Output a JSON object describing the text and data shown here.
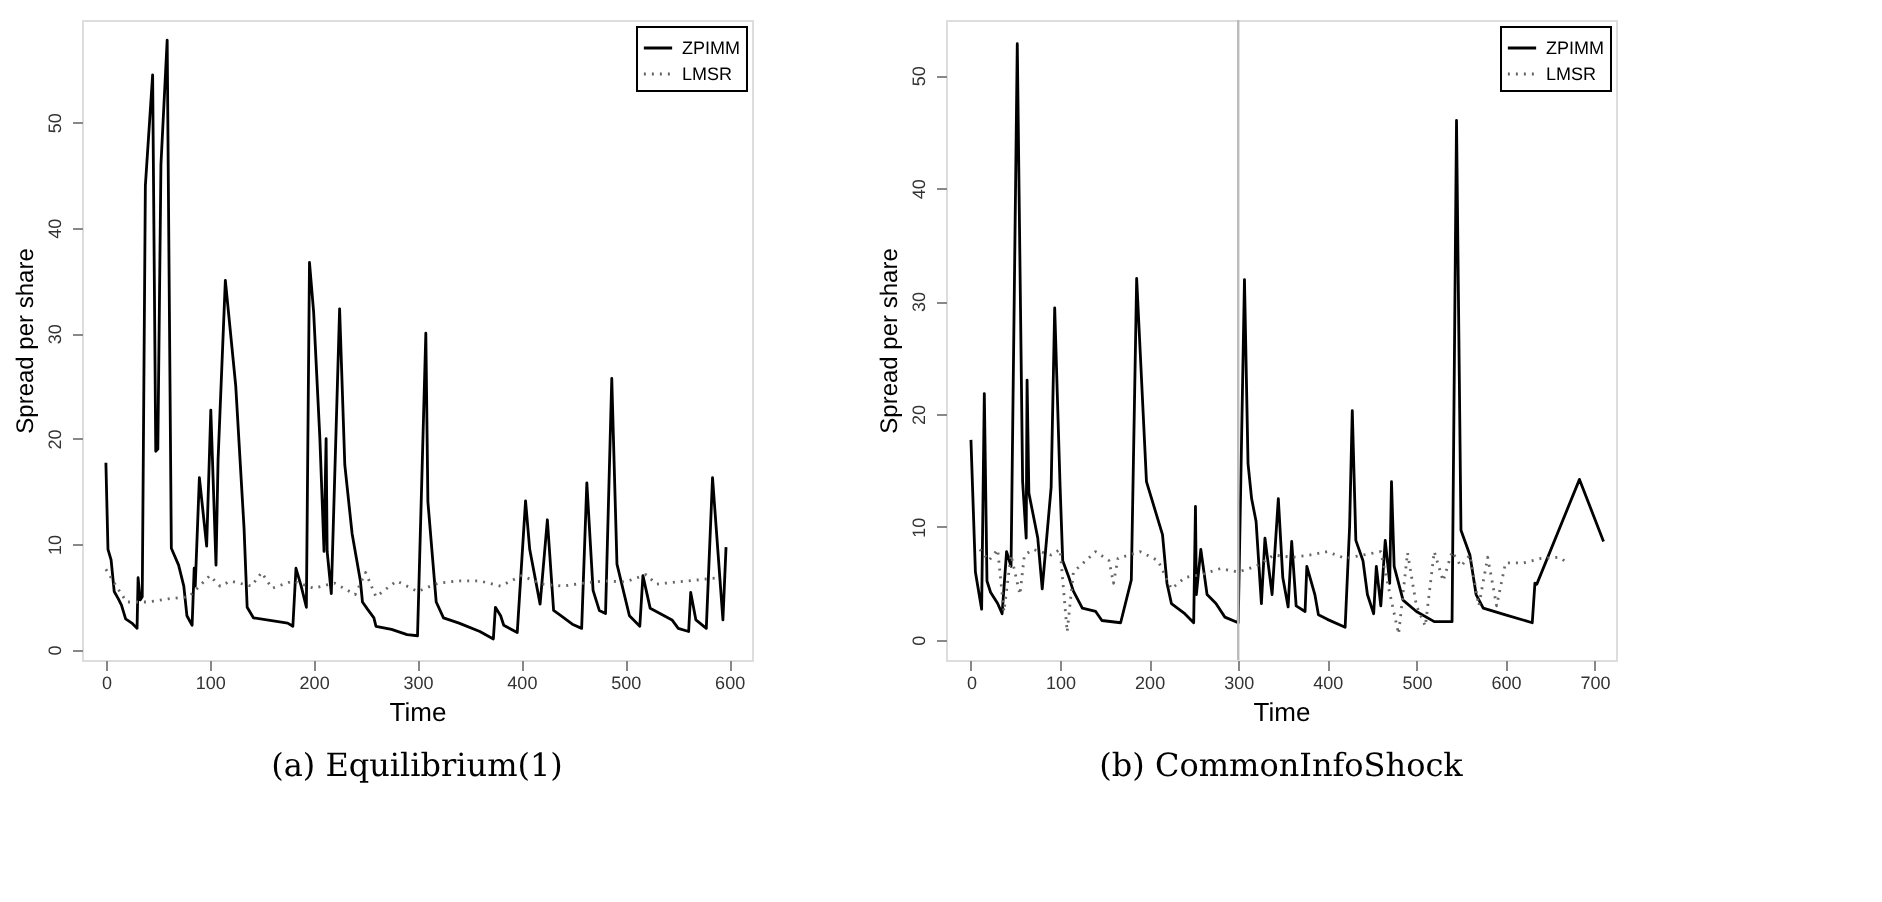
{
  "chart_data": [
    {
      "type": "line",
      "title": "(a) Equilibrium(1)",
      "xlabel": "Time",
      "ylabel": "Spread per share",
      "xlim": [
        -23,
        622
      ],
      "ylim": [
        -1,
        59.7
      ],
      "xticks": [
        0,
        100,
        200,
        300,
        400,
        500,
        600
      ],
      "yticks": [
        0,
        10,
        20,
        30,
        40,
        50
      ],
      "grid": false,
      "legend": "top right",
      "marker": "none",
      "series": [
        {
          "name": "ZPIMM",
          "color": "#000000",
          "line_style": "solid",
          "x": [
            0,
            2,
            5,
            8,
            12,
            15,
            19,
            25,
            30,
            31,
            33,
            35,
            38,
            45,
            48,
            50,
            53,
            59,
            63,
            70,
            75,
            78,
            83,
            85,
            86,
            90,
            97,
            101,
            106,
            108,
            115,
            125,
            133,
            136,
            142,
            175,
            180,
            183,
            188,
            193,
            196,
            200,
            206,
            210,
            212,
            213,
            217,
            225,
            230,
            237,
            245,
            247,
            252,
            258,
            260,
            275,
            290,
            300,
            308,
            310,
            318,
            325,
            340,
            360,
            373,
            375,
            380,
            383,
            396,
            404,
            408,
            418,
            425,
            431,
            438,
            449,
            458,
            463,
            469,
            475,
            481,
            487,
            492,
            504,
            514,
            517,
            524,
            545,
            551,
            561,
            563,
            568,
            578,
            584,
            594,
            597
          ],
          "values": [
            17.7,
            9.5,
            8.5,
            5.5,
            4.8,
            4.2,
            2.9,
            2.5,
            2,
            6.8,
            4.7,
            5,
            44,
            54.5,
            18.8,
            19,
            46,
            57.8,
            9.6,
            8,
            6,
            3.2,
            2.3,
            7.7,
            6,
            16.3,
            9.8,
            22.7,
            8,
            18,
            35,
            25,
            11.5,
            4,
            3,
            2.5,
            2.2,
            7.7,
            6,
            4,
            36.7,
            32,
            20,
            9.3,
            20,
            9.3,
            5.3,
            32.3,
            17.5,
            11,
            6.5,
            4.5,
            3.8,
            3,
            2.2,
            1.9,
            1.4,
            1.3,
            30,
            14,
            4.5,
            3,
            2.5,
            1.7,
            1,
            4,
            3.2,
            2.3,
            1.6,
            14.1,
            9.5,
            4.3,
            12.3,
            3.7,
            3.2,
            2.4,
            2,
            15.8,
            5.6,
            3.7,
            3.4,
            25.7,
            8.1,
            3.2,
            2.2,
            7,
            3.9,
            2.8,
            2,
            1.7,
            5.4,
            2.8,
            2,
            16.3,
            2.8,
            9.7
          ]
        },
        {
          "name": "LMSR",
          "color": "#666666",
          "line_style": "dotted",
          "x": [
            0,
            10,
            20,
            40,
            60,
            80,
            100,
            110,
            120,
            140,
            150,
            160,
            180,
            200,
            220,
            240,
            250,
            260,
            280,
            300,
            320,
            340,
            360,
            380,
            400,
            420,
            440,
            460,
            480,
            500,
            520,
            530,
            560,
            590
          ],
          "values": [
            7.6,
            6,
            4.5,
            4.5,
            4.8,
            5,
            7,
            6,
            6.5,
            6,
            7.3,
            5.8,
            6.5,
            5.8,
            6.3,
            5.2,
            7.3,
            5,
            6.5,
            5.5,
            6.3,
            6.5,
            6.5,
            6,
            7,
            6.2,
            6,
            6.3,
            6.5,
            6.4,
            7.1,
            6.2,
            6.5,
            6.8
          ]
        }
      ]
    },
    {
      "type": "line",
      "title": "(b) CommonInfoShock",
      "xlabel": "Time",
      "ylabel": "Spread per share",
      "xlim": [
        -28,
        724
      ],
      "ylim": [
        -1.8,
        54.9
      ],
      "xticks": [
        0,
        100,
        200,
        300,
        400,
        500,
        600,
        700
      ],
      "yticks": [
        0,
        10,
        20,
        30,
        40,
        50
      ],
      "grid": false,
      "legend": "top right",
      "marker": "none",
      "ref_lines": [
        {
          "axis": "x",
          "value": 300,
          "color": "#bbbbbb"
        }
      ],
      "series": [
        {
          "name": "ZPIMM",
          "color": "#000000",
          "line_style": "solid",
          "x": [
            0,
            5,
            12,
            15,
            18,
            22,
            30,
            35,
            40,
            45,
            52,
            58,
            62,
            63,
            65,
            75,
            80,
            90,
            94,
            100,
            103,
            110,
            115,
            125,
            140,
            147,
            168,
            180,
            186,
            197,
            215,
            220,
            225,
            240,
            250,
            252,
            253,
            258,
            265,
            275,
            285,
            300,
            307,
            311,
            315,
            320,
            326,
            330,
            338,
            345,
            350,
            356,
            360,
            365,
            375,
            377,
            386,
            390,
            400,
            420,
            425,
            428,
            432,
            440,
            445,
            452,
            455,
            460,
            465,
            470,
            472,
            475,
            485,
            500,
            520,
            540,
            545,
            550,
            560,
            567,
            575,
            600,
            630,
            633,
            635,
            683,
            710
          ],
          "values": [
            17.7,
            6,
            2.7,
            21.8,
            5.2,
            4.2,
            3.2,
            2.3,
            7.8,
            6.5,
            52.8,
            14,
            9,
            23,
            13,
            9,
            4.5,
            13.5,
            29.4,
            13.7,
            7,
            5.5,
            4.3,
            2.8,
            2.5,
            1.7,
            1.5,
            5.3,
            32,
            14,
            9.3,
            5,
            3.2,
            2.3,
            1.5,
            11.8,
            4,
            8,
            4,
            3.2,
            2,
            1.5,
            31.9,
            15.6,
            12.5,
            10.5,
            3.2,
            9,
            4,
            12.5,
            5.5,
            2.9,
            8.7,
            3,
            2.5,
            6.5,
            4,
            2.2,
            1.8,
            1.1,
            10,
            20.3,
            8.8,
            7,
            4,
            2.3,
            6.5,
            3,
            8.8,
            5,
            14,
            6.5,
            3.5,
            2.5,
            1.6,
            1.6,
            46,
            9.7,
            7.5,
            4,
            2.8,
            2.2,
            1.5,
            5,
            4.9,
            14.2,
            8.7
          ]
        },
        {
          "name": "LMSR",
          "color": "#666666",
          "line_style": "dotted",
          "x": [
            10,
            20,
            30,
            37,
            45,
            55,
            60,
            70,
            90,
            100,
            108,
            115,
            140,
            155,
            160,
            165,
            190,
            210,
            225,
            240,
            260,
            280,
            300,
            320,
            340,
            360,
            380,
            400,
            420,
            440,
            460,
            480,
            490,
            500,
            510,
            520,
            530,
            540,
            550,
            560,
            570,
            580,
            590,
            600,
            620,
            640,
            660,
            670
          ],
          "values": [
            8,
            7,
            8,
            2.5,
            7.5,
            4,
            7.5,
            8,
            7.5,
            8,
            0.7,
            6,
            7.8,
            7,
            5,
            7.2,
            7.8,
            7,
            4.5,
            5.5,
            5.8,
            6.3,
            6,
            6.5,
            7.5,
            7.3,
            7.5,
            7.8,
            7.2,
            7.5,
            7.8,
            0.5,
            7.7,
            3,
            1.2,
            7.8,
            5.2,
            7.8,
            6.5,
            7.5,
            3,
            7.3,
            3,
            6.8,
            6.8,
            7.2,
            7.3,
            6.8
          ]
        }
      ]
    }
  ]
}
